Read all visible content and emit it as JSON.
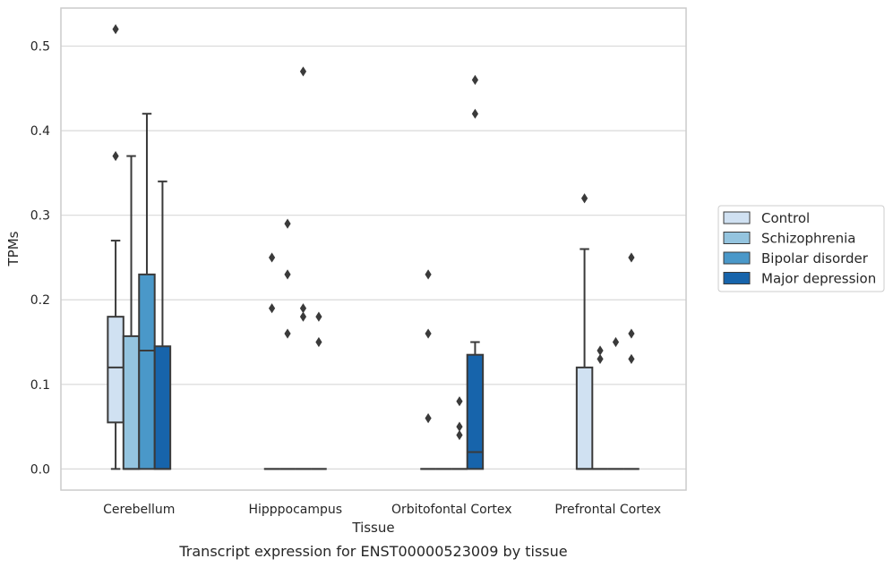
{
  "chart_data": {
    "type": "box",
    "caption": "Transcript expression for ENST00000523009 by tissue",
    "xlabel": "Tissue",
    "ylabel": "TPMs",
    "ylim": [
      -0.025,
      0.545
    ],
    "yticks": [
      0.0,
      0.1,
      0.2,
      0.3,
      0.4,
      0.5
    ],
    "ytick_labels": [
      "0.0",
      "0.1",
      "0.2",
      "0.3",
      "0.4",
      "0.5"
    ],
    "grid": true,
    "legend_position": "right-center",
    "categories": [
      "Cerebellum",
      "Hipppocampus",
      "Orbitofontal Cortex",
      "Prefrontal Cortex"
    ],
    "series": [
      {
        "name": "Control",
        "color": "#d0e1f2",
        "boxes": [
          {
            "whislo": 0.0,
            "q1": 0.055,
            "med": 0.12,
            "q3": 0.18,
            "whishi": 0.27,
            "fliers": [
              0.37,
              0.52
            ]
          },
          {
            "whislo": 0.0,
            "q1": 0.0,
            "med": 0.0,
            "q3": 0.0,
            "whishi": 0.0,
            "fliers": [
              0.19,
              0.25
            ]
          },
          {
            "whislo": 0.0,
            "q1": 0.0,
            "med": 0.0,
            "q3": 0.0,
            "whishi": 0.0,
            "fliers": [
              0.06,
              0.16,
              0.23
            ]
          },
          {
            "whislo": 0.0,
            "q1": 0.0,
            "med": 0.0,
            "q3": 0.12,
            "whishi": 0.26,
            "fliers": [
              0.32
            ]
          }
        ]
      },
      {
        "name": "Schizophrenia",
        "color": "#94c4df",
        "boxes": [
          {
            "whislo": 0.0,
            "q1": 0.0,
            "med": 0.0,
            "q3": 0.157,
            "whishi": 0.37,
            "fliers": []
          },
          {
            "whislo": 0.0,
            "q1": 0.0,
            "med": 0.0,
            "q3": 0.0,
            "whishi": 0.0,
            "fliers": [
              0.16,
              0.23,
              0.29
            ]
          },
          {
            "whislo": 0.0,
            "q1": 0.0,
            "med": 0.0,
            "q3": 0.0,
            "whishi": 0.0,
            "fliers": []
          },
          {
            "whislo": 0.0,
            "q1": 0.0,
            "med": 0.0,
            "q3": 0.0,
            "whishi": 0.0,
            "fliers": [
              0.13,
              0.14
            ]
          }
        ]
      },
      {
        "name": "Bipolar disorder",
        "color": "#4a98c9",
        "boxes": [
          {
            "whislo": 0.0,
            "q1": 0.0,
            "med": 0.14,
            "q3": 0.23,
            "whishi": 0.42,
            "fliers": []
          },
          {
            "whislo": 0.0,
            "q1": 0.0,
            "med": 0.0,
            "q3": 0.0,
            "whishi": 0.0,
            "fliers": [
              0.18,
              0.19,
              0.47
            ]
          },
          {
            "whislo": 0.0,
            "q1": 0.0,
            "med": 0.0,
            "q3": 0.0,
            "whishi": 0.0,
            "fliers": [
              0.04,
              0.05,
              0.08
            ]
          },
          {
            "whislo": 0.0,
            "q1": 0.0,
            "med": 0.0,
            "q3": 0.0,
            "whishi": 0.0,
            "fliers": [
              0.15
            ]
          }
        ]
      },
      {
        "name": "Major depression",
        "color": "#1764ab",
        "boxes": [
          {
            "whislo": 0.0,
            "q1": 0.0,
            "med": 0.0,
            "q3": 0.145,
            "whishi": 0.34,
            "fliers": []
          },
          {
            "whislo": 0.0,
            "q1": 0.0,
            "med": 0.0,
            "q3": 0.0,
            "whishi": 0.0,
            "fliers": [
              0.15,
              0.18
            ]
          },
          {
            "whislo": 0.0,
            "q1": 0.0,
            "med": 0.02,
            "q3": 0.135,
            "whishi": 0.15,
            "fliers": [
              0.42,
              0.46
            ]
          },
          {
            "whislo": 0.0,
            "q1": 0.0,
            "med": 0.0,
            "q3": 0.0,
            "whishi": 0.0,
            "fliers": [
              0.13,
              0.16,
              0.25
            ]
          }
        ]
      }
    ],
    "colors": {
      "grid": "#d9d9d9",
      "spine": "#cccccc",
      "line": "#3a3a3a",
      "background": "#ffffff"
    }
  }
}
